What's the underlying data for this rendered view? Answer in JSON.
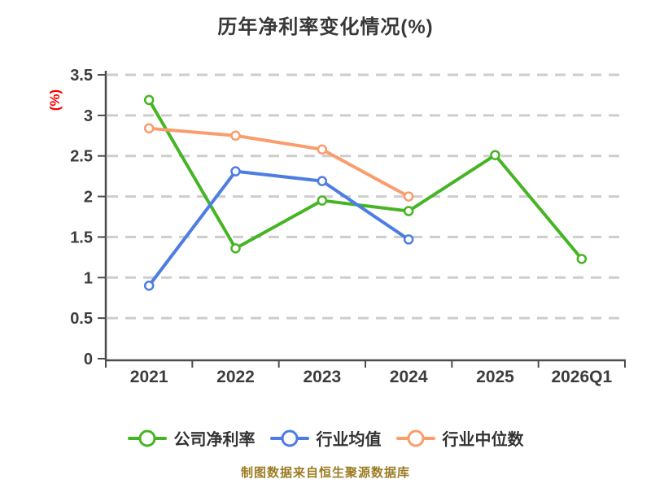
{
  "title": "历年净利率变化情况(%)",
  "y_axis_label": "(%)",
  "footer": "制图数据来自恒生聚源数据库",
  "colors": {
    "background": "#ffffff",
    "title_text": "#383838",
    "axis_line": "#4c4c4c",
    "tick_text": "#3c3c3c",
    "grid_line": "#cdcdcd",
    "y_axis_label_text": "#fe0000",
    "legend_text": "#333333",
    "footer_text": "#9c7c24",
    "marker_fill": "#ffffff"
  },
  "chart_data": {
    "type": "line",
    "title": "历年净利率变化情况(%)",
    "xlabel": "",
    "ylabel": "(%)",
    "categories": [
      "2021",
      "2022",
      "2023",
      "2024",
      "2025",
      "2026Q1"
    ],
    "series": [
      {
        "name": "公司净利率",
        "color": "#46b523",
        "values": [
          3.19,
          1.36,
          1.95,
          1.82,
          2.51,
          1.23
        ]
      },
      {
        "name": "行业均值",
        "color": "#4d7de4",
        "values": [
          0.9,
          2.31,
          2.19,
          1.47,
          null,
          null
        ]
      },
      {
        "name": "行业中位数",
        "color": "#fa9c6c",
        "values": [
          2.84,
          2.75,
          2.58,
          2.0,
          null,
          null
        ]
      }
    ],
    "ylim": [
      0,
      3.5
    ],
    "yticks": [
      0,
      0.5,
      1,
      1.5,
      2,
      2.5,
      3,
      3.5
    ],
    "grid": "horizontal-dashed",
    "legend_position": "bottom",
    "marker": "circle-white-fill"
  }
}
